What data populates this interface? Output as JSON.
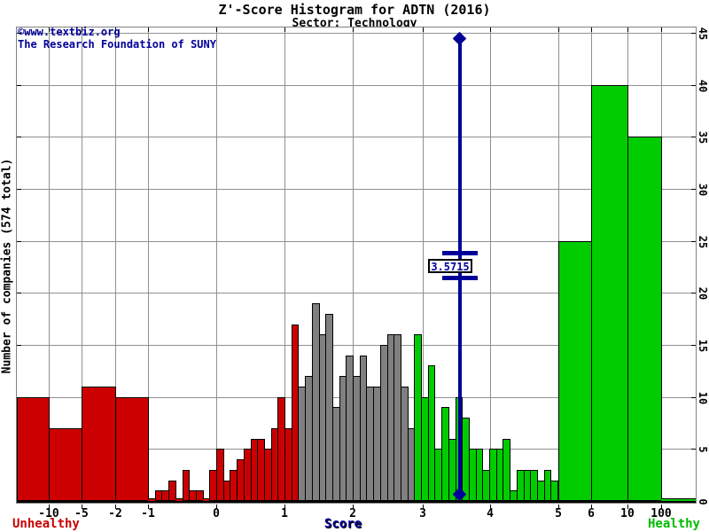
{
  "title": "Z'-Score Histogram for ADTN (2016)",
  "subtitle": "Sector: Technology",
  "watermark": {
    "line1": "©www.textbiz.org",
    "line2": "The Research Foundation of SUNY"
  },
  "axes": {
    "y_label": "Number of companies (574 total)",
    "y_ticks": [
      "0",
      "5",
      "10",
      "15",
      "20",
      "25",
      "30",
      "35",
      "40",
      "45"
    ],
    "x_label": "Score",
    "x_ticks": [
      "-10",
      "-5",
      "-2",
      "-1",
      "0",
      "1",
      "2",
      "3",
      "4",
      "5",
      "6",
      "10",
      "100"
    ]
  },
  "footer": {
    "unhealthy_label": "Unhealthy",
    "healthy_label": "Healthy"
  },
  "marker": {
    "label": "3.5715",
    "value": 3.5715
  },
  "colors": {
    "unhealthy_red": "#CC0000",
    "neutral_gray": "#808080",
    "healthy_green": "#00CC00",
    "navy": "#000099",
    "grid_gray": "#909090"
  },
  "chart_data": {
    "type": "bar",
    "title": "Z'-Score Histogram for ADTN (2016)",
    "subtitle": "Sector: Technology",
    "xlabel": "Score",
    "ylabel": "Number of companies (574 total)",
    "ylim": [
      0,
      45
    ],
    "grid": true,
    "total_companies": 574,
    "company": "ADTN",
    "year": "2016",
    "sector": "Technology",
    "marker_value": 3.5715,
    "zones": {
      "red_below_score": 1.2,
      "gray_below_score": 2.9,
      "green_from_score": 2.9
    },
    "wide_bins_left": [
      {
        "range": "< -10",
        "count": 10,
        "color": "red"
      },
      {
        "range": "-10 to -5",
        "count": 7,
        "color": "red"
      },
      {
        "range": "-5 to -2",
        "count": 11,
        "color": "red"
      },
      {
        "range": "-2 to -1",
        "count": 10,
        "color": "red"
      }
    ],
    "unit_bins": {
      "start": -1.0,
      "step": 0.1,
      "counts": [
        0,
        1,
        1,
        2,
        0,
        3,
        1,
        1,
        0,
        3,
        5,
        2,
        3,
        4,
        5,
        6,
        6,
        5,
        7,
        10,
        7,
        17,
        11,
        12,
        19,
        16,
        18,
        9,
        12,
        14,
        12,
        14,
        11,
        11,
        15,
        16,
        16,
        11,
        7,
        16,
        10,
        13,
        5,
        9,
        6,
        10,
        8,
        5,
        5,
        3,
        5,
        5,
        6,
        1,
        3,
        3,
        3,
        2,
        3,
        2
      ]
    },
    "wide_bins_right": [
      {
        "range": "5 to 6",
        "count": 25,
        "color": "green"
      },
      {
        "range": "6 to 10",
        "count": 40,
        "color": "green"
      },
      {
        "range": "10 to 100",
        "count": 35,
        "color": "green"
      },
      {
        "range": "> 100",
        "count": 0,
        "color": "green"
      }
    ]
  }
}
